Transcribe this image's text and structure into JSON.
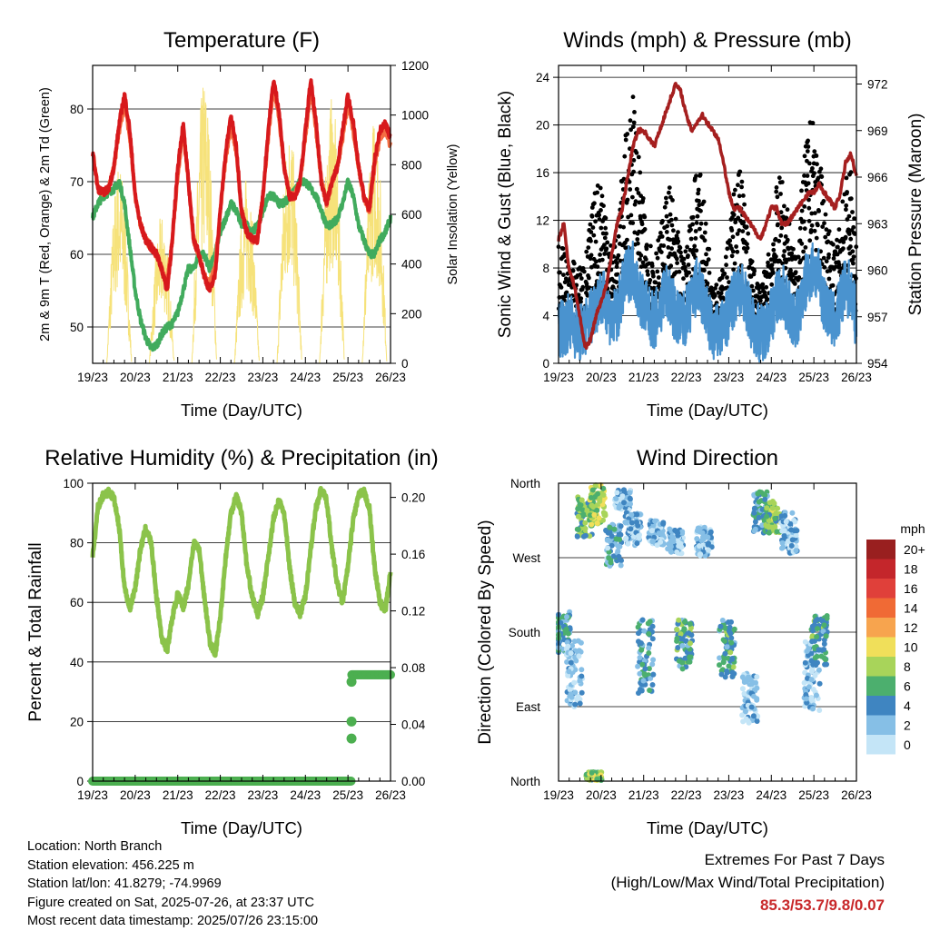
{
  "chart_data": [
    {
      "type": "line",
      "title": "Temperature (F)",
      "xlabel": "Time (Day/UTC)",
      "ylabel": "2m & 9m T (Red, Orange) & 2m Td (Green)",
      "ylabel_right": "Solar Insolation (Yellow)",
      "x_ticks": [
        "19/23",
        "20/23",
        "21/23",
        "22/23",
        "23/23",
        "24/23",
        "25/23",
        "26/23"
      ],
      "ylim": [
        45,
        86
      ],
      "y_ticks": [
        50,
        60,
        70,
        80
      ],
      "ylim_right": [
        0,
        1200
      ],
      "y_ticks_right": [
        0,
        200,
        400,
        600,
        800,
        1000,
        1200
      ],
      "grid": "horizontal",
      "x_hours": [
        0,
        3,
        6,
        9,
        12,
        15,
        18,
        21,
        24,
        27,
        30,
        33,
        36,
        39,
        42,
        45,
        48,
        51,
        54,
        57,
        60,
        63,
        66,
        69,
        72,
        75,
        78,
        81,
        84,
        87,
        90,
        93,
        96,
        99,
        102,
        105,
        108,
        111,
        114,
        117,
        120,
        123,
        126,
        129,
        132,
        135,
        138,
        141,
        144,
        147,
        150,
        153,
        156,
        159,
        162,
        165,
        168
      ],
      "series": [
        {
          "name": "2m T",
          "color": "#d7191c",
          "values": [
            74,
            69,
            68.5,
            69,
            72,
            78,
            82,
            77,
            68,
            64,
            62,
            61,
            60,
            58,
            55,
            62,
            72,
            78,
            70,
            62,
            60,
            57,
            55,
            57,
            66,
            74,
            79,
            75,
            66,
            63,
            62,
            62,
            68,
            77,
            84,
            80,
            72,
            68,
            68,
            70,
            77,
            84,
            78,
            70,
            67,
            70,
            72,
            77,
            82,
            78,
            72,
            68,
            66,
            73,
            77,
            78,
            76
          ]
        },
        {
          "name": "9m T",
          "color": "#f46d43",
          "values": [
            74,
            69,
            68.5,
            69,
            72,
            77,
            81,
            76,
            68,
            64,
            62,
            61,
            60,
            58,
            56,
            62,
            71,
            77,
            70,
            62,
            60,
            57,
            56,
            58,
            66,
            73,
            78,
            74,
            66,
            63,
            62,
            62,
            68,
            76,
            83,
            79,
            72,
            68,
            68,
            70,
            76,
            83,
            77,
            70,
            67,
            70,
            72,
            76,
            81,
            77,
            72,
            68,
            66,
            72,
            76,
            77,
            75
          ]
        },
        {
          "name": "2m Td",
          "color": "#41ab5d",
          "values": [
            65,
            67,
            68,
            68.5,
            69,
            70,
            67,
            61,
            55,
            51,
            48.5,
            47,
            47.5,
            49,
            50,
            50.5,
            52,
            55,
            58,
            58,
            60,
            60,
            58,
            60,
            63,
            65,
            67,
            66,
            64,
            64,
            63,
            64,
            66,
            68,
            68,
            67,
            67,
            68,
            69,
            70,
            70,
            69,
            68,
            66,
            64,
            64,
            65,
            67,
            70,
            68,
            64,
            62,
            60,
            60,
            62,
            63,
            65
          ]
        }
      ],
      "solar_insolation": [
        {
          "day": "20",
          "peak": 820
        },
        {
          "day": "21",
          "peak": 600
        },
        {
          "day": "22",
          "peak": 1160
        },
        {
          "day": "23",
          "peak": 760
        },
        {
          "day": "24",
          "peak": 980
        },
        {
          "day": "25",
          "peak": 1080
        },
        {
          "day": "26",
          "peak": 1000
        }
      ],
      "solar_color": "#f6e27a"
    },
    {
      "type": "scatter",
      "title": "Winds (mph) & Pressure (mb)",
      "xlabel": "Time (Day/UTC)",
      "ylabel": "Sonic Wind & Gust (Blue, Black)",
      "ylabel_right": "Station Pressure (Maroon)",
      "x_ticks": [
        "19/23",
        "20/23",
        "21/23",
        "22/23",
        "23/23",
        "24/23",
        "25/23",
        "26/23"
      ],
      "ylim": [
        0,
        25
      ],
      "y_ticks": [
        0,
        4,
        8,
        12,
        16,
        20,
        24
      ],
      "ylim_right": [
        954,
        973.2
      ],
      "y_ticks_right": [
        954,
        957,
        960,
        963,
        966,
        969,
        972
      ],
      "grid": "horizontal",
      "x_hours": [
        0,
        3,
        6,
        9,
        12,
        15,
        18,
        21,
        24,
        27,
        30,
        33,
        36,
        39,
        42,
        45,
        48,
        51,
        54,
        57,
        60,
        63,
        66,
        69,
        72,
        75,
        78,
        81,
        84,
        87,
        90,
        93,
        96,
        99,
        102,
        105,
        108,
        111,
        114,
        117,
        120,
        123,
        126,
        129,
        132,
        135,
        138,
        141,
        144,
        147,
        150,
        153,
        156,
        159,
        162,
        165,
        168
      ],
      "series": [
        {
          "name": "Sonic Wind",
          "color": "#4a93cf",
          "values": [
            3,
            3,
            3.5,
            3,
            2.5,
            3,
            4,
            5,
            5.5,
            5,
            3.5,
            4,
            6,
            7.5,
            8,
            6,
            5,
            4,
            3.5,
            4.5,
            6,
            5.5,
            4,
            3.5,
            4,
            5,
            6.5,
            5.5,
            4,
            2.5,
            2.5,
            3,
            4,
            5.5,
            6.5,
            5.5,
            4,
            3,
            2.5,
            3,
            4,
            5.5,
            6,
            5,
            3.5,
            4,
            6,
            7.5,
            8,
            7,
            5,
            4,
            3.5,
            5,
            6.5,
            6,
            3.5
          ]
        },
        {
          "name": "Gust",
          "color": "#000000",
          "values": [
            8,
            7,
            6,
            6.5,
            6,
            6.5,
            9,
            11,
            12,
            10,
            7,
            8,
            12,
            15.5,
            17,
            13,
            10,
            8,
            7,
            8,
            10,
            11,
            9,
            7,
            7,
            10,
            13,
            11,
            8,
            6,
            5,
            6,
            8,
            11,
            13,
            10,
            7,
            5.5,
            5,
            6,
            8,
            11,
            12,
            10,
            7,
            8,
            12,
            15,
            15,
            13,
            10,
            8,
            7,
            9,
            12,
            12,
            7
          ]
        },
        {
          "name": "Station Pressure",
          "color": "#a51f1f",
          "values": [
            962,
            963,
            960,
            959,
            957,
            955,
            955.5,
            957,
            958,
            959,
            961,
            963,
            964,
            966,
            968,
            969,
            969,
            968.5,
            968,
            969,
            970,
            971,
            972,
            971.5,
            970,
            969,
            969.5,
            970,
            969.5,
            969,
            968.5,
            967,
            965,
            964,
            964,
            963.5,
            963,
            962.5,
            962,
            963,
            964,
            964,
            963,
            963,
            963.5,
            964,
            964.5,
            965,
            965,
            965.5,
            965,
            964.5,
            964,
            965,
            967,
            967.5,
            966
          ]
        }
      ]
    },
    {
      "type": "line",
      "title": "Relative Humidity (%) & Precipitation (in)",
      "xlabel": "Time (Day/UTC)",
      "ylabel": "Percent & Total Rainfall",
      "x_ticks": [
        "19/23",
        "20/23",
        "21/23",
        "22/23",
        "23/23",
        "24/23",
        "25/23",
        "26/23"
      ],
      "ylim": [
        0,
        100
      ],
      "y_ticks": [
        0,
        20,
        40,
        60,
        80,
        100
      ],
      "ylim_right": [
        0,
        0.21
      ],
      "y_ticks_right": [
        "0.00",
        "0.04",
        "0.08",
        "0.12",
        "0.16",
        "0.20"
      ],
      "grid": "horizontal",
      "x_hours": [
        0,
        3,
        6,
        9,
        12,
        15,
        18,
        21,
        24,
        27,
        30,
        33,
        36,
        39,
        42,
        45,
        48,
        51,
        54,
        57,
        60,
        63,
        66,
        69,
        72,
        75,
        78,
        81,
        84,
        87,
        90,
        93,
        96,
        99,
        102,
        105,
        108,
        111,
        114,
        117,
        120,
        123,
        126,
        129,
        132,
        135,
        138,
        141,
        144,
        147,
        150,
        153,
        156,
        159,
        162,
        165,
        168
      ],
      "series": [
        {
          "name": "Relative Humidity",
          "color": "#8bc34a",
          "values": [
            75,
            92,
            96,
            97,
            95,
            85,
            65,
            58,
            65,
            78,
            85,
            80,
            62,
            48,
            44,
            55,
            63,
            58,
            66,
            80,
            78,
            62,
            47,
            42,
            55,
            75,
            90,
            96,
            90,
            72,
            62,
            56,
            62,
            75,
            88,
            94,
            90,
            72,
            60,
            56,
            62,
            78,
            92,
            98,
            94,
            78,
            66,
            60,
            72,
            88,
            96,
            97,
            92,
            72,
            60,
            57,
            70
          ]
        },
        {
          "name": "Total Precipitation",
          "color": "#4caf50",
          "values": [
            0,
            0,
            0,
            0,
            0,
            0,
            0,
            0,
            0,
            0,
            0,
            0,
            0,
            0,
            0,
            0,
            0,
            0,
            0,
            0,
            0,
            0,
            0,
            0,
            0,
            0,
            0,
            0,
            0,
            0,
            0,
            0,
            0,
            0,
            0,
            0,
            0,
            0,
            0,
            0,
            0,
            0,
            0,
            0,
            0,
            0,
            0,
            0,
            0.075,
            0.075,
            0.075,
            0.075,
            0.075,
            0.075,
            0.075,
            0.075,
            0.075
          ]
        }
      ]
    },
    {
      "type": "scatter",
      "title": "Wind Direction",
      "xlabel": "Time (Day/UTC)",
      "ylabel": "Direction (Colored By Speed)",
      "x_ticks": [
        "19/23",
        "20/23",
        "21/23",
        "22/23",
        "23/23",
        "24/23",
        "25/23",
        "26/23"
      ],
      "y_ticks": [
        "North",
        "East",
        "South",
        "West",
        "North"
      ],
      "ylim": [
        0,
        360
      ],
      "grid": "horizontal",
      "colorbar_title": "mph",
      "colorbar_labels": [
        "20+",
        "18",
        "16",
        "14",
        "12",
        "10",
        "8",
        "6",
        "4",
        "2",
        "0"
      ],
      "colorbar_colors": [
        "#991f1f",
        "#c4262b",
        "#e0403a",
        "#f06a35",
        "#f7a44e",
        "#f0df5a",
        "#a8d45a",
        "#4caf6e",
        "#3f85c1",
        "#86bfe6",
        "#c4e5f7"
      ],
      "clusters": [
        {
          "hour": 2,
          "dir": 180,
          "spread": 25,
          "speed": 4
        },
        {
          "hour": 9,
          "dir": 130,
          "spread": 40,
          "speed": 2
        },
        {
          "hour": 15,
          "dir": 320,
          "spread": 25,
          "speed": 6
        },
        {
          "hour": 22,
          "dir": 335,
          "spread": 25,
          "speed": 8
        },
        {
          "hour": 31,
          "dir": 285,
          "spread": 25,
          "speed": 3
        },
        {
          "hour": 36,
          "dir": 340,
          "spread": 12,
          "speed": 2
        },
        {
          "hour": 42,
          "dir": 305,
          "spread": 20,
          "speed": 2
        },
        {
          "hour": 49,
          "dir": 150,
          "spread": 45,
          "speed": 4
        },
        {
          "hour": 55,
          "dir": 300,
          "spread": 15,
          "speed": 2
        },
        {
          "hour": 66,
          "dir": 290,
          "spread": 15,
          "speed": 2
        },
        {
          "hour": 71,
          "dir": 165,
          "spread": 30,
          "speed": 5
        },
        {
          "hour": 82,
          "dir": 290,
          "spread": 18,
          "speed": 2
        },
        {
          "hour": 95,
          "dir": 160,
          "spread": 35,
          "speed": 5
        },
        {
          "hour": 108,
          "dir": 100,
          "spread": 30,
          "speed": 2
        },
        {
          "hour": 114,
          "dir": 325,
          "spread": 25,
          "speed": 4
        },
        {
          "hour": 121,
          "dir": 320,
          "spread": 20,
          "speed": 7
        },
        {
          "hour": 130,
          "dir": 300,
          "spread": 25,
          "speed": 2
        },
        {
          "hour": 143,
          "dir": 130,
          "spread": 45,
          "speed": 2
        },
        {
          "hour": 147,
          "dir": 170,
          "spread": 30,
          "speed": 5
        },
        {
          "hour": 20,
          "dir": 6,
          "spread": 5,
          "speed": 7
        }
      ]
    }
  ],
  "footer": {
    "location": "Location: North Branch",
    "elevation": "Station elevation: 456.225 m",
    "latlon": "Station lat/lon: 41.8279; -74.9969",
    "created": "Figure created on Sat, 2025-07-26, at 23:37 UTC",
    "timestamp": "Most recent data timestamp: 2025/07/26 23:15:00"
  },
  "extremes": {
    "title": "Extremes For Past 7 Days",
    "subtitle": "(High/Low/Max Wind/Total Precipitation)",
    "value": "85.3/53.7/9.8/0.07"
  }
}
